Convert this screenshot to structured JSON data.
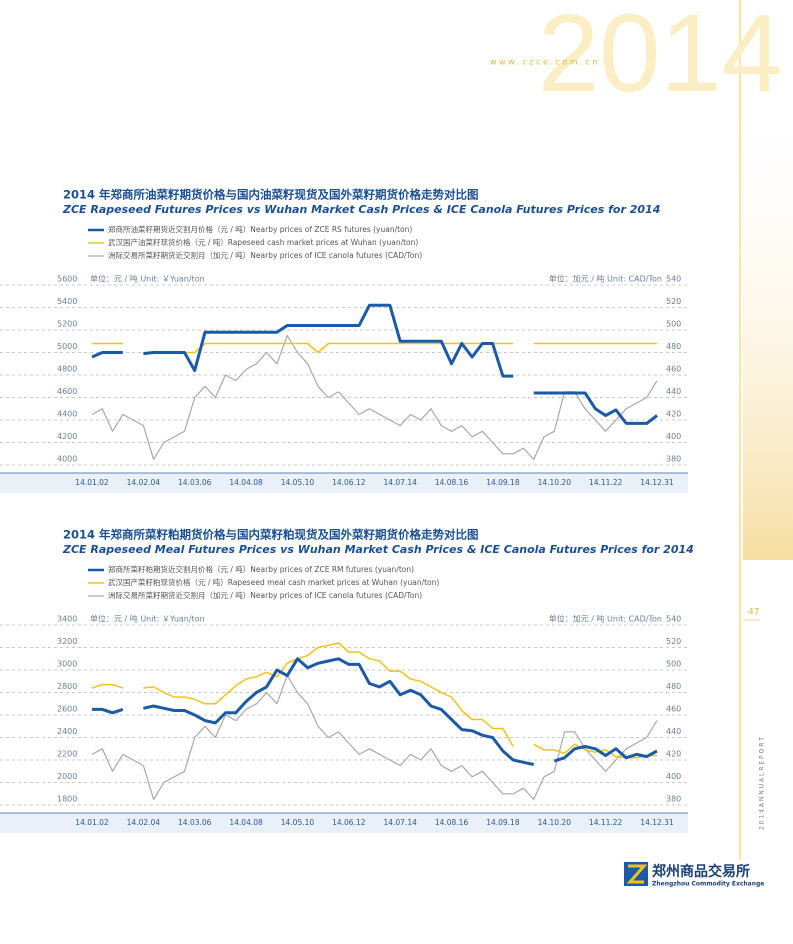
{
  "header": {
    "watermark": "2014",
    "url": "w w w . c z c e . c o m . c n"
  },
  "page_number": "47",
  "side_text": "2 0 1 4   A N N U A L   R E P O R T",
  "logo": {
    "cn": "郑州商品交易所",
    "en": "Zhengzhou Commodity Exchange"
  },
  "chart_data": [
    {
      "type": "line",
      "title": "2014 年郑商所油菜籽期货价格与国内油菜籽现货及国外菜籽期货价格走势对比图",
      "subtitle": "ZCE Rapeseed Futures Prices vs Wuhan Market Cash Prices & ICE Canola Futures Prices for 2014",
      "y_label": "单位：元 / 吨  Unit: ￥Yuan/ton",
      "y2_label": "单位：加元 / 吨  Unit: CAD/Ton",
      "categories": [
        "14.01.02",
        null,
        null,
        null,
        null,
        "14.02.04",
        null,
        null,
        null,
        null,
        "14.03.06",
        null,
        null,
        null,
        null,
        "14.04.08",
        null,
        null,
        null,
        null,
        "14.05.10",
        null,
        null,
        null,
        null,
        "14.06.12",
        null,
        null,
        null,
        null,
        "14.07.14",
        null,
        null,
        null,
        null,
        "14.08.16",
        null,
        null,
        null,
        null,
        "14.09.18",
        null,
        null,
        null,
        null,
        "14.10.20",
        null,
        null,
        null,
        null,
        "14.11.22",
        null,
        null,
        null,
        null,
        "14.12.31"
      ],
      "ylim": [
        4000,
        5600
      ],
      "yticks": [
        4000,
        4200,
        4400,
        4600,
        4800,
        5000,
        5200,
        5400,
        5600
      ],
      "y2lim": [
        380,
        540
      ],
      "y2ticks": [
        380,
        400,
        420,
        440,
        460,
        480,
        500,
        520,
        540
      ],
      "series": [
        {
          "name": "郑商所油菜籽期货近交割月价格（元 / 吨）Nearby prices of ZCE RS futures (yuan/ton)",
          "color": "#1a5aa8",
          "width": 3,
          "values": [
            4960,
            5000,
            5000,
            5000,
            null,
            4990,
            5000,
            5000,
            5000,
            5000,
            4840,
            5180,
            5180,
            5180,
            5180,
            5180,
            5180,
            5180,
            5180,
            5240,
            5240,
            5240,
            5240,
            5240,
            5240,
            5240,
            5240,
            5420,
            5420,
            5420,
            5100,
            5100,
            5100,
            5100,
            5100,
            4900,
            5080,
            4960,
            5080,
            5080,
            4790,
            4790,
            null,
            4640,
            4640,
            4640,
            4640,
            4640,
            4640,
            4500,
            4440,
            4490,
            4370,
            4370,
            4370,
            4440
          ]
        },
        {
          "name": "武汉国产油菜籽现货价格（元 / 吨）Rapeseed cash market prices at Wuhan (yuan/ton)",
          "color": "#f2c21b",
          "width": 1.5,
          "values": [
            5080,
            5080,
            5080,
            5080,
            null,
            5000,
            5000,
            5000,
            5000,
            5000,
            5000,
            5080,
            5080,
            5080,
            5080,
            5080,
            5080,
            5080,
            5080,
            5080,
            5080,
            5080,
            5000,
            5080,
            5080,
            5080,
            5080,
            5080,
            5080,
            5080,
            5080,
            5080,
            5080,
            5080,
            5080,
            5080,
            5080,
            5080,
            5080,
            5080,
            5080,
            5080,
            null,
            5080,
            5080,
            5080,
            5080,
            5080,
            5080,
            5080,
            5080,
            5080,
            5080,
            5080,
            5080,
            5080
          ]
        },
        {
          "name": "洲际交易所菜籽期货近交割月（加元 / 吨）Nearby prices of ICE canola futures (CAD/Ton)",
          "color": "#a8a8a8",
          "width": 1.2,
          "axis": "y2",
          "values": [
            425,
            430,
            410,
            425,
            420,
            415,
            385,
            400,
            405,
            410,
            440,
            450,
            440,
            460,
            455,
            465,
            470,
            480,
            470,
            495,
            480,
            470,
            450,
            440,
            445,
            435,
            425,
            430,
            425,
            420,
            415,
            425,
            420,
            430,
            415,
            410,
            415,
            405,
            410,
            400,
            390,
            390,
            395,
            385,
            405,
            410,
            445,
            445,
            430,
            420,
            410,
            420,
            430,
            435,
            440,
            455
          ]
        }
      ]
    },
    {
      "type": "line",
      "title": "2014 年郑商所菜籽粕期货价格与国内菜籽粕现货及国外菜籽期货价格走势对比图",
      "subtitle": "ZCE Rapeseed Meal Futures Prices vs Wuhan Market Cash Prices & ICE Canola Futures Prices for 2014",
      "y_label": "单位：元 / 吨  Unit: ￥Yuan/ton",
      "y2_label": "单位：加元 / 吨  Unit: CAD/Ton",
      "categories": [
        "14.01.02",
        null,
        null,
        null,
        null,
        "14.02.04",
        null,
        null,
        null,
        null,
        "14.03.06",
        null,
        null,
        null,
        null,
        "14.04.08",
        null,
        null,
        null,
        null,
        "14.05.10",
        null,
        null,
        null,
        null,
        "14.06.12",
        null,
        null,
        null,
        null,
        "14.07.14",
        null,
        null,
        null,
        null,
        "14.08.16",
        null,
        null,
        null,
        null,
        "14.09.18",
        null,
        null,
        null,
        null,
        "14.10.20",
        null,
        null,
        null,
        null,
        "14.11.22",
        null,
        null,
        null,
        null,
        "14.12.31"
      ],
      "ylim": [
        1800,
        3400
      ],
      "yticks": [
        1800,
        2000,
        2200,
        2400,
        2600,
        2800,
        3000,
        3200,
        3400
      ],
      "y2lim": [
        380,
        540
      ],
      "y2ticks": [
        380,
        400,
        420,
        440,
        460,
        480,
        500,
        520,
        540
      ],
      "series": [
        {
          "name": "郑商所菜籽粕期货近交割月价格（元 / 吨）Nearby prices of ZCE RM futures (yuan/ton)",
          "color": "#1a5aa8",
          "width": 3,
          "values": [
            2650,
            2650,
            2620,
            2650,
            null,
            2660,
            2680,
            2660,
            2640,
            2640,
            2600,
            2550,
            2530,
            2620,
            2620,
            2720,
            2800,
            2850,
            3000,
            2950,
            3100,
            3020,
            3060,
            3080,
            3100,
            3050,
            3050,
            2880,
            2850,
            2900,
            2780,
            2820,
            2780,
            2680,
            2650,
            2560,
            2470,
            2460,
            2420,
            2400,
            2280,
            2200,
            2180,
            2160,
            null,
            2190,
            2220,
            2300,
            2320,
            2300,
            2240,
            2300,
            2220,
            2250,
            2230,
            2280
          ]
        },
        {
          "name": "武汉国产菜籽粕现货价格（元 / 吨）Rapeseed meal cash market prices at Wuhan (yuan/ton)",
          "color": "#f2c21b",
          "width": 1.5,
          "values": [
            2840,
            2870,
            2870,
            2840,
            null,
            2840,
            2850,
            2800,
            2760,
            2760,
            2740,
            2700,
            2700,
            2780,
            2860,
            2920,
            2940,
            2980,
            2940,
            3060,
            3100,
            3130,
            3200,
            3220,
            3240,
            3160,
            3160,
            3100,
            3080,
            2990,
            2990,
            2920,
            2900,
            2850,
            2800,
            2760,
            2640,
            2560,
            2560,
            2480,
            2480,
            2320,
            null,
            2340,
            2290,
            2290,
            2260,
            2340,
            2290,
            2270,
            2290,
            2230,
            2220,
            2220,
            2240,
            2240
          ]
        },
        {
          "name": "洲际交易所菜籽期货近交割月（加元 / 吨）Nearby prices of ICE canola futures (CAD/Ton)",
          "color": "#a8a8a8",
          "width": 1.2,
          "axis": "y2",
          "values": [
            425,
            430,
            410,
            425,
            420,
            415,
            385,
            400,
            405,
            410,
            440,
            450,
            440,
            460,
            455,
            465,
            470,
            480,
            470,
            495,
            480,
            470,
            450,
            440,
            445,
            435,
            425,
            430,
            425,
            420,
            415,
            425,
            420,
            430,
            415,
            410,
            415,
            405,
            410,
            400,
            390,
            390,
            395,
            385,
            405,
            410,
            445,
            445,
            430,
            420,
            410,
            420,
            430,
            435,
            440,
            455
          ]
        }
      ]
    }
  ]
}
